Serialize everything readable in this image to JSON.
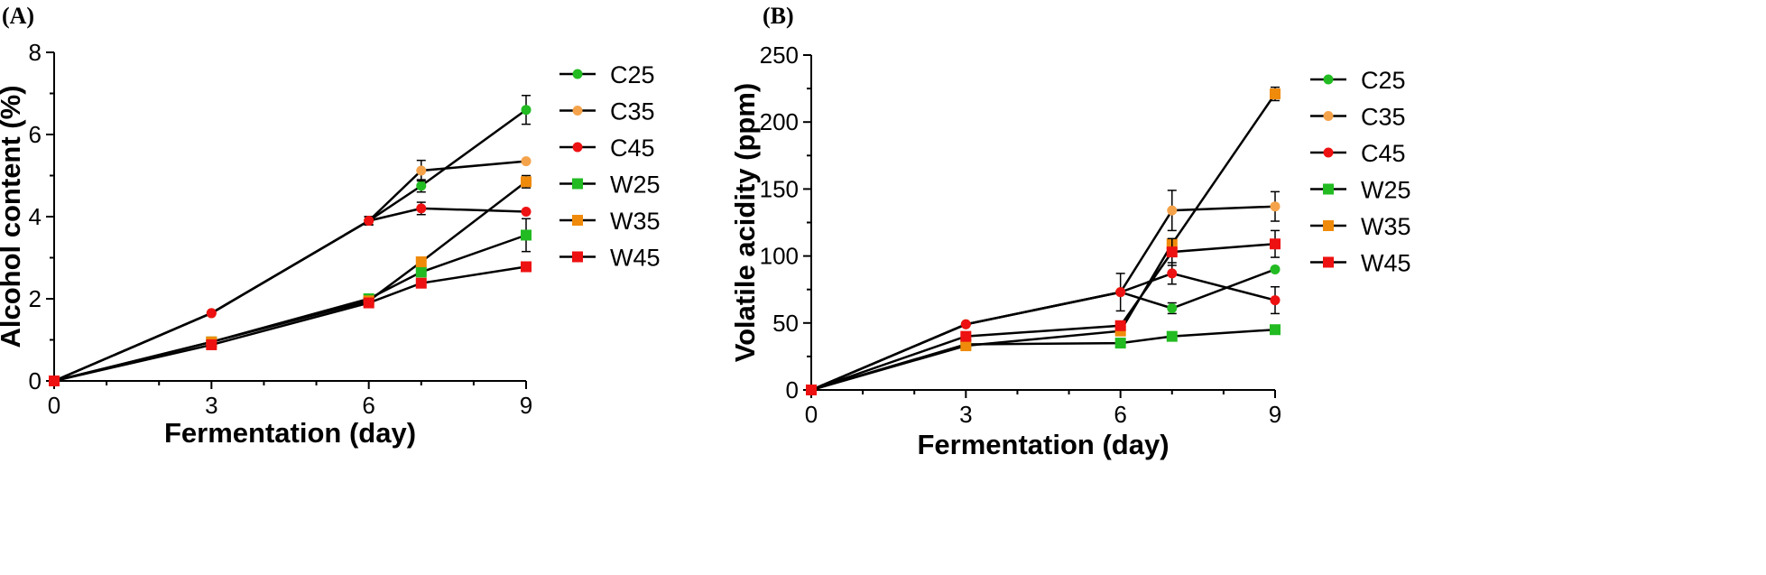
{
  "chart_data": [
    {
      "panel": "(A)",
      "type": "line",
      "xlabel": "Fermentation (day)",
      "ylabel": "Alcohol content (%)",
      "xlim": [
        0,
        9
      ],
      "ylim": [
        0,
        8
      ],
      "xticks": [
        0,
        3,
        6,
        9
      ],
      "yticks": [
        0,
        2,
        4,
        6,
        8
      ],
      "x": [
        0,
        3,
        6,
        7,
        9
      ],
      "series": [
        {
          "name": "C25",
          "marker": "circle",
          "color": "#22bb22",
          "values": [
            0,
            1.65,
            3.9,
            4.75,
            6.6
          ],
          "errors": [
            0,
            0,
            0.1,
            0.15,
            0.35
          ]
        },
        {
          "name": "C35",
          "marker": "circle",
          "color": "#f5a34b",
          "values": [
            0,
            1.65,
            3.9,
            5.12,
            5.35
          ],
          "errors": [
            0,
            0,
            0.1,
            0.25,
            0
          ]
        },
        {
          "name": "C45",
          "marker": "circle",
          "color": "#ee1111",
          "values": [
            0,
            1.65,
            3.9,
            4.2,
            4.12
          ],
          "errors": [
            0,
            0,
            0.1,
            0.15,
            0
          ]
        },
        {
          "name": "W25",
          "marker": "square",
          "color": "#22bb22",
          "values": [
            0,
            0.95,
            2.0,
            2.65,
            3.55
          ],
          "errors": [
            0,
            0,
            0,
            0,
            0.4
          ]
        },
        {
          "name": "W35",
          "marker": "square",
          "color": "#f08a0a",
          "values": [
            0,
            0.95,
            1.95,
            2.9,
            4.85
          ],
          "errors": [
            0,
            0.1,
            0,
            0,
            0.15
          ]
        },
        {
          "name": "W45",
          "marker": "square",
          "color": "#ee1111",
          "values": [
            0,
            0.88,
            1.9,
            2.38,
            2.78
          ],
          "errors": [
            0,
            0,
            0,
            0,
            0
          ]
        }
      ]
    },
    {
      "panel": "(B)",
      "type": "line",
      "xlabel": "Fermentation (day)",
      "ylabel": "Volatile acidity (ppm)",
      "xlim": [
        0,
        9
      ],
      "ylim": [
        0,
        250
      ],
      "xticks": [
        0,
        3,
        6,
        9
      ],
      "yticks": [
        0,
        50,
        100,
        150,
        200,
        250
      ],
      "x": [
        0,
        3,
        6,
        7,
        9
      ],
      "series": [
        {
          "name": "C25",
          "marker": "circle",
          "color": "#22bb22",
          "values": [
            0,
            49,
            73,
            61,
            90
          ],
          "errors": [
            0,
            0,
            0,
            4,
            0
          ]
        },
        {
          "name": "C35",
          "marker": "circle",
          "color": "#f5a34b",
          "values": [
            0,
            49,
            73,
            134,
            137
          ],
          "errors": [
            0,
            0,
            0,
            15,
            11
          ]
        },
        {
          "name": "C45",
          "marker": "circle",
          "color": "#ee1111",
          "values": [
            0,
            49,
            73,
            87,
            67
          ],
          "errors": [
            0,
            0,
            14,
            8,
            10
          ]
        },
        {
          "name": "W25",
          "marker": "square",
          "color": "#22bb22",
          "values": [
            0,
            34,
            35,
            40,
            45
          ],
          "errors": [
            0,
            0,
            0,
            0,
            0
          ]
        },
        {
          "name": "W35",
          "marker": "square",
          "color": "#f08a0a",
          "values": [
            0,
            33,
            44,
            109,
            221
          ],
          "errors": [
            0,
            0,
            0,
            0,
            5
          ]
        },
        {
          "name": "W45",
          "marker": "square",
          "color": "#ee1111",
          "values": [
            0,
            40,
            48,
            103,
            109
          ],
          "errors": [
            0,
            0,
            0,
            10,
            10
          ]
        }
      ]
    }
  ]
}
